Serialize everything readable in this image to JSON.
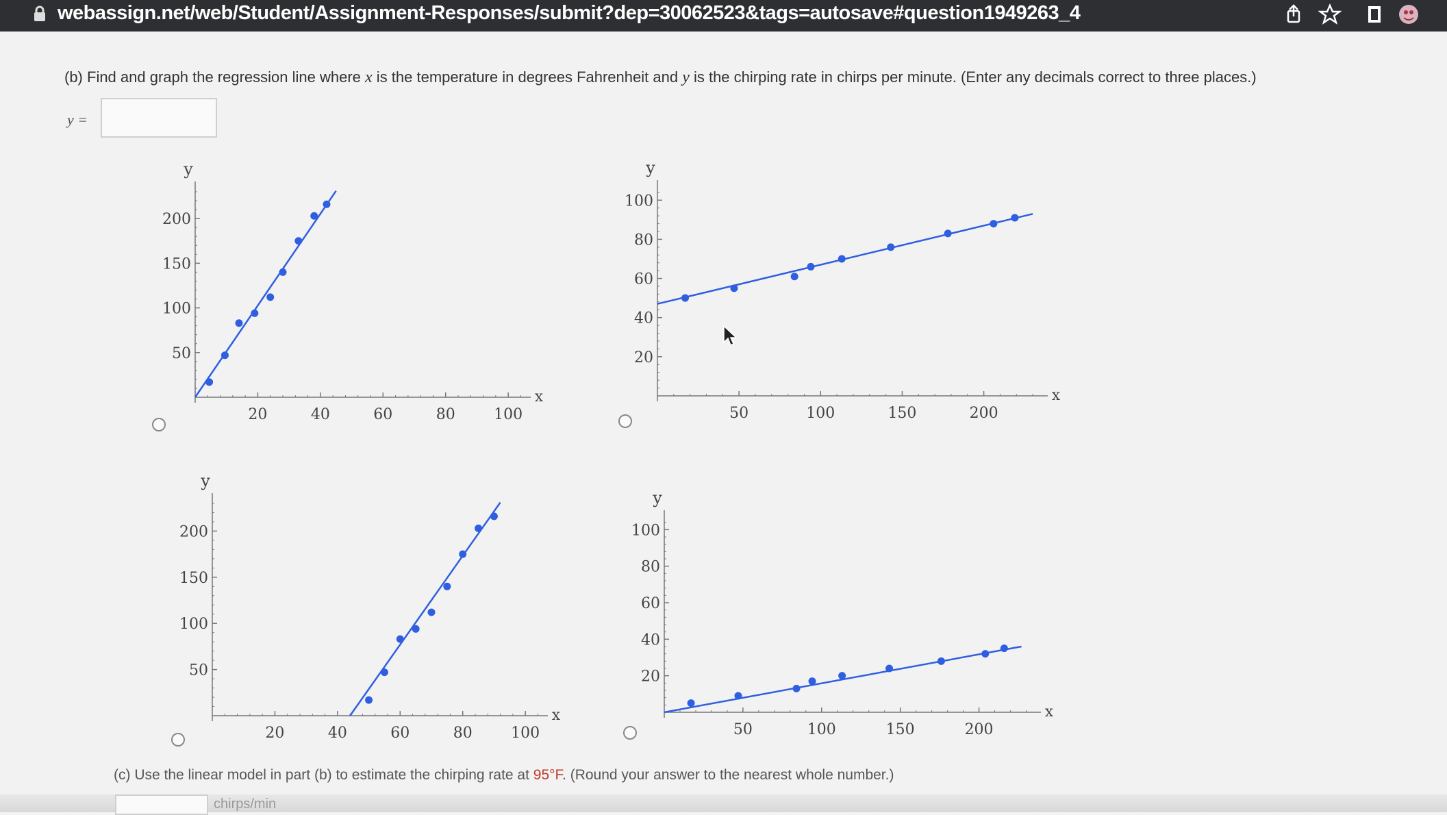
{
  "browser": {
    "url": "webassign.net/web/Student/Assignment-Responses/submit?dep=30062523&tags=autosave#question1949263_4",
    "icons": [
      "lock-icon",
      "share-icon",
      "star-icon",
      "reader-icon",
      "avatar-icon"
    ]
  },
  "question": {
    "part_b_prefix": "(b) Find and graph the regression line where ",
    "var_x": "x",
    "part_b_mid1": " is the temperature in degrees Fahrenheit and ",
    "var_y": "y",
    "part_b_mid2": " is the chirping rate in chirps per minute. (Enter any decimals correct to three places.)",
    "answer_label": "y =",
    "answer_value": "",
    "part_c_prefix": "(c) Use the linear model in part (b) to estimate the chirping rate at ",
    "part_c_temp": "95°F",
    "part_c_suffix": ". (Round your answer to the nearest whole number.)",
    "part_c_unit": "chirps/min",
    "part_c_value": ""
  },
  "chart_data": [
    {
      "type": "scatter",
      "id": "option-1",
      "xlabel": "x",
      "ylabel": "y",
      "xlim": [
        0,
        105
      ],
      "ylim": [
        0,
        230
      ],
      "xticks": [
        20,
        40,
        60,
        80,
        100
      ],
      "yticks": [
        50,
        100,
        150,
        200
      ],
      "points": [
        [
          4.5,
          17
        ],
        [
          9.5,
          47
        ],
        [
          14,
          83
        ],
        [
          19,
          94
        ],
        [
          24,
          112
        ],
        [
          28,
          140
        ],
        [
          33,
          175
        ],
        [
          38,
          203
        ],
        [
          42,
          216
        ]
      ],
      "line": [
        [
          0,
          0
        ],
        [
          45,
          231
        ]
      ],
      "selected": false
    },
    {
      "type": "scatter",
      "id": "option-2",
      "xlabel": "x",
      "ylabel": "y",
      "xlim": [
        0,
        235
      ],
      "ylim": [
        0,
        105
      ],
      "xticks": [
        50,
        100,
        150,
        200
      ],
      "yticks": [
        20,
        40,
        60,
        80,
        100
      ],
      "points": [
        [
          17,
          50
        ],
        [
          47,
          55
        ],
        [
          84,
          61
        ],
        [
          94,
          66
        ],
        [
          113,
          70
        ],
        [
          143,
          76
        ],
        [
          178,
          83
        ],
        [
          206,
          88
        ],
        [
          219,
          91
        ]
      ],
      "line": [
        [
          0,
          47
        ],
        [
          230,
          93
        ]
      ],
      "selected": false
    },
    {
      "type": "scatter",
      "id": "option-3",
      "xlabel": "x",
      "ylabel": "y",
      "xlim": [
        0,
        105
      ],
      "ylim": [
        0,
        230
      ],
      "xticks": [
        20,
        40,
        60,
        80,
        100
      ],
      "yticks": [
        50,
        100,
        150,
        200
      ],
      "points": [
        [
          50,
          17
        ],
        [
          55,
          47
        ],
        [
          60,
          83
        ],
        [
          65,
          94
        ],
        [
          70,
          112
        ],
        [
          75,
          140
        ],
        [
          80,
          175
        ],
        [
          85,
          203
        ],
        [
          90,
          216
        ]
      ],
      "line": [
        [
          44,
          0
        ],
        [
          92,
          231
        ]
      ],
      "selected": false
    },
    {
      "type": "scatter",
      "id": "option-4",
      "xlabel": "x",
      "ylabel": "y",
      "xlim": [
        0,
        235
      ],
      "ylim": [
        0,
        105
      ],
      "xticks": [
        50,
        100,
        150,
        200
      ],
      "yticks": [
        20,
        40,
        60,
        80,
        100
      ],
      "points": [
        [
          17,
          5
        ],
        [
          47,
          9
        ],
        [
          84,
          13
        ],
        [
          94,
          17
        ],
        [
          113,
          20
        ],
        [
          143,
          24
        ],
        [
          176,
          28
        ],
        [
          204,
          32
        ],
        [
          216,
          35
        ]
      ],
      "line": [
        [
          0,
          0
        ],
        [
          227,
          36
        ]
      ],
      "selected": false
    }
  ],
  "colors": {
    "series": "#2f5fe0",
    "axis": "#777777",
    "page": "#f2f2f2",
    "urlbar": "#2e2f33"
  }
}
